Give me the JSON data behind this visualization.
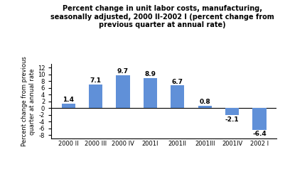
{
  "categories": [
    "2000 II",
    "2000 III",
    "2000 IV",
    "2001I",
    "2001II",
    "2001III",
    "2001IV",
    "2002 I"
  ],
  "values": [
    1.4,
    7.1,
    9.7,
    8.9,
    6.7,
    0.8,
    -2.1,
    -6.4
  ],
  "bar_color": "#6090d8",
  "title_line1": "Percent change in unit labor costs, manufacturing,",
  "title_line2": "seasonally adjusted, 2000 II-2002 I (percent change from",
  "title_line3": "previous quarter at annual rate)",
  "ylabel": "Percent change from previous\nquarter at annual rate",
  "ylim": [
    -9,
    13
  ],
  "yticks": [
    -8,
    -6,
    -4,
    -2,
    0,
    2,
    4,
    6,
    8,
    10,
    12
  ],
  "title_fontsize": 7.0,
  "label_fontsize": 6.5,
  "tick_fontsize": 6.0,
  "ylabel_fontsize": 6.0,
  "background_color": "#ffffff"
}
